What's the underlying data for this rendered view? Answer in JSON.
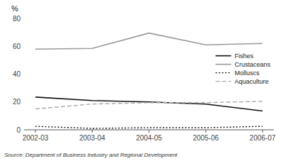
{
  "chart_data": {
    "type": "line",
    "ylabel": "%",
    "annotations": [
      "Source: Department of Business Industry and  Regional Development"
    ],
    "categories": [
      "2002-03",
      "2003-04",
      "2004-05",
      "2005-06",
      "2006-07"
    ],
    "series": [
      {
        "name": "Fishes",
        "color": "#111111",
        "line_style": "solid",
        "values": [
          23.5,
          21.0,
          20.0,
          18.5,
          13.5
        ]
      },
      {
        "name": "Crustaceans",
        "color": "#999999",
        "line_style": "solid",
        "values": [
          58.0,
          58.5,
          69.5,
          61.0,
          62.0
        ]
      },
      {
        "name": "Molluscs",
        "color": "#111111",
        "line_style": "dotted",
        "values": [
          2.5,
          1.0,
          1.5,
          1.5,
          2.5
        ]
      },
      {
        "name": "Aquaculture",
        "color": "#aaaaaa",
        "line_style": "dashed",
        "values": [
          15.0,
          18.5,
          19.5,
          19.5,
          20.5
        ]
      }
    ],
    "ylim": [
      0,
      80
    ],
    "yticks": [
      0,
      20,
      40,
      60,
      80
    ],
    "grid": false,
    "legend": "right"
  }
}
